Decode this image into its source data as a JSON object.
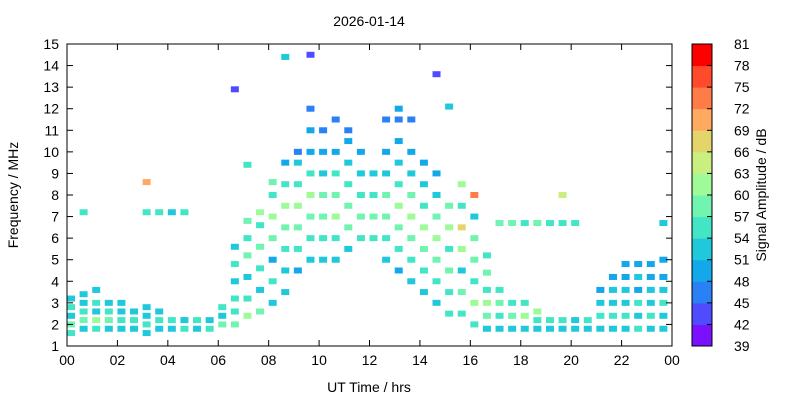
{
  "chart_data": {
    "type": "heatmap",
    "title": "2026-01-14",
    "xlabel": "UT Time / hrs",
    "ylabel": "Frequency / MHz",
    "xlim": [
      0,
      24
    ],
    "xticks": [
      {
        "value": 0,
        "label": "00"
      },
      {
        "value": 2,
        "label": "02"
      },
      {
        "value": 4,
        "label": "04"
      },
      {
        "value": 6,
        "label": "06"
      },
      {
        "value": 8,
        "label": "08"
      },
      10,
      12,
      14,
      16,
      18,
      20,
      22,
      {
        "value": 24,
        "label": "00"
      }
    ],
    "ylim": [
      1,
      15
    ],
    "yticks": [
      1,
      2,
      3,
      4,
      5,
      6,
      7,
      8,
      9,
      10,
      11,
      12,
      13,
      14,
      15
    ],
    "colorbar": {
      "label": "Signal Amplitude / dB",
      "ticks": [
        39,
        42,
        45,
        48,
        51,
        54,
        57,
        60,
        63,
        66,
        69,
        72,
        75,
        78,
        81
      ],
      "colors": [
        "#7b10ff",
        "#4f4cff",
        "#2a80f5",
        "#12a8ea",
        "#20c8dc",
        "#42e6c6",
        "#70f4b0",
        "#9efb98",
        "#c8ef80",
        "#e4d46c",
        "#ffaa60",
        "#ff7c48",
        "#ff4a2c",
        "#ff0000"
      ]
    },
    "columns": [
      {
        "x": 0,
        "y": [
          1.6,
          2.0,
          2.4,
          2.8,
          3.2
        ],
        "values": [
          54,
          57,
          51,
          55,
          52
        ]
      },
      {
        "x": 0.5,
        "y": [
          1.8,
          2.2,
          2.6,
          3.0,
          3.4,
          7.2
        ],
        "values": [
          52,
          58,
          55,
          53,
          51,
          54
        ]
      },
      {
        "x": 1,
        "y": [
          1.8,
          2.2,
          2.6,
          3.0,
          3.6
        ],
        "values": [
          55,
          60,
          52,
          54,
          51
        ]
      },
      {
        "x": 1.5,
        "y": [
          1.8,
          2.2,
          2.6,
          3.0
        ],
        "values": [
          51,
          57,
          54,
          52
        ]
      },
      {
        "x": 2,
        "y": [
          1.8,
          2.2,
          2.6,
          3.0
        ],
        "values": [
          53,
          55,
          51,
          52
        ]
      },
      {
        "x": 2.5,
        "y": [
          1.8,
          2.2,
          2.6
        ],
        "values": [
          52,
          54,
          53
        ]
      },
      {
        "x": 3,
        "y": [
          1.6,
          2.0,
          2.4,
          2.8,
          7.2,
          8.6
        ],
        "values": [
          51,
          55,
          53,
          52,
          54,
          69
        ]
      },
      {
        "x": 3.5,
        "y": [
          1.8,
          2.2,
          2.6,
          7.2
        ],
        "values": [
          53,
          56,
          51,
          54
        ]
      },
      {
        "x": 4,
        "y": [
          1.8,
          2.2,
          7.2
        ],
        "values": [
          52,
          55,
          53
        ]
      },
      {
        "x": 4.5,
        "y": [
          1.8,
          2.2,
          7.2
        ],
        "values": [
          55,
          53,
          54
        ]
      },
      {
        "x": 5,
        "y": [
          1.8,
          2.2
        ],
        "values": [
          52,
          56
        ]
      },
      {
        "x": 5.5,
        "y": [
          1.8,
          2.2
        ],
        "values": [
          54,
          51
        ]
      },
      {
        "x": 6,
        "y": [
          2.0,
          2.4,
          2.8
        ],
        "values": [
          57,
          53,
          55
        ]
      },
      {
        "x": 6.5,
        "y": [
          2.0,
          2.6,
          3.2,
          4.0,
          4.8,
          5.6,
          12.9
        ],
        "values": [
          58,
          56,
          54,
          52,
          55,
          53,
          42
        ]
      },
      {
        "x": 7,
        "y": [
          2.4,
          3.2,
          4.2,
          5.2,
          6.0,
          6.8,
          9.4
        ],
        "values": [
          60,
          55,
          52,
          57,
          54,
          59,
          56
        ]
      },
      {
        "x": 7.5,
        "y": [
          2.6,
          3.6,
          4.6,
          5.6,
          6.6,
          7.2
        ],
        "values": [
          57,
          51,
          54,
          59,
          55,
          62
        ]
      },
      {
        "x": 8,
        "y": [
          3.0,
          4.0,
          5.0,
          6.0,
          7.0,
          8.0,
          8.6
        ],
        "values": [
          52,
          55,
          50,
          57,
          61,
          54,
          58
        ]
      },
      {
        "x": 8.5,
        "y": [
          3.5,
          4.5,
          5.5,
          6.5,
          7.5,
          8.5,
          9.5,
          14.4
        ],
        "values": [
          51,
          53,
          56,
          58,
          62,
          55,
          49,
          51
        ]
      },
      {
        "x": 9,
        "y": [
          4.5,
          5.5,
          6.5,
          7.5,
          8.5,
          9.5,
          10.0
        ],
        "values": [
          50,
          54,
          57,
          60,
          55,
          52,
          45
        ]
      },
      {
        "x": 9.5,
        "y": [
          5.0,
          6.0,
          7.0,
          8.0,
          9.0,
          10.0,
          11.0,
          12.0,
          14.5
        ],
        "values": [
          52,
          55,
          58,
          61,
          56,
          50,
          48,
          47,
          42
        ]
      },
      {
        "x": 10,
        "y": [
          5.0,
          6.0,
          7.0,
          8.0,
          9.0,
          10.0,
          11.0
        ],
        "values": [
          51,
          54,
          59,
          57,
          53,
          49,
          47
        ]
      },
      {
        "x": 10.5,
        "y": [
          5.0,
          6.0,
          7.0,
          8.0,
          9.0,
          10.0,
          11.5
        ],
        "values": [
          53,
          56,
          60,
          58,
          54,
          50,
          46
        ]
      },
      {
        "x": 11,
        "y": [
          5.5,
          6.5,
          7.5,
          8.5,
          9.5,
          10.5,
          11.0
        ],
        "values": [
          52,
          57,
          59,
          55,
          51,
          48,
          47
        ]
      },
      {
        "x": 11.5,
        "y": [
          6.0,
          7.0,
          8.0,
          9.0,
          10.0
        ],
        "values": [
          55,
          58,
          56,
          52,
          49
        ]
      },
      {
        "x": 12,
        "y": [
          6.0,
          7.0,
          8.0,
          9.0
        ],
        "values": [
          54,
          57,
          55,
          51
        ]
      },
      {
        "x": 12.5,
        "y": [
          5.0,
          6.0,
          7.0,
          8.0,
          9.0,
          10.0,
          11.5
        ],
        "values": [
          51,
          55,
          59,
          57,
          53,
          49,
          47
        ]
      },
      {
        "x": 13,
        "y": [
          4.5,
          5.5,
          6.5,
          7.5,
          8.5,
          9.5,
          10.5,
          11.5,
          12.0
        ],
        "values": [
          50,
          54,
          58,
          61,
          56,
          52,
          49,
          47,
          48
        ]
      },
      {
        "x": 13.5,
        "y": [
          4.0,
          5.0,
          6.0,
          7.0,
          8.0,
          9.0,
          10.0,
          11.5
        ],
        "values": [
          52,
          55,
          59,
          62,
          57,
          53,
          50,
          47
        ]
      },
      {
        "x": 14,
        "y": [
          3.5,
          4.5,
          5.5,
          6.5,
          7.5,
          8.5,
          9.5
        ],
        "values": [
          51,
          54,
          57,
          60,
          56,
          52,
          49
        ]
      },
      {
        "x": 14.5,
        "y": [
          3.0,
          4.0,
          5.0,
          6.0,
          7.0,
          8.0,
          9.0,
          13.6
        ],
        "values": [
          52,
          55,
          58,
          61,
          57,
          53,
          50,
          42
        ]
      },
      {
        "x": 15,
        "y": [
          2.5,
          3.5,
          4.5,
          5.5,
          6.5,
          7.5,
          12.1
        ],
        "values": [
          54,
          56,
          59,
          55,
          62,
          57,
          51
        ]
      },
      {
        "x": 15.5,
        "y": [
          2.5,
          3.5,
          4.5,
          5.5,
          6.5,
          7.5,
          8.5
        ],
        "values": [
          55,
          58,
          53,
          60,
          66,
          56,
          60
        ]
      },
      {
        "x": 16,
        "y": [
          2.0,
          3.0,
          4.0,
          5.0,
          6.0,
          7.0,
          8.0
        ],
        "values": [
          56,
          60,
          54,
          57,
          59,
          53,
          74
        ]
      },
      {
        "x": 16.5,
        "y": [
          1.8,
          2.4,
          3.0,
          3.6,
          4.4,
          5.2
        ],
        "values": [
          52,
          57,
          61,
          55,
          58,
          54
        ]
      },
      {
        "x": 17,
        "y": [
          1.8,
          2.4,
          3.0,
          3.6,
          6.7
        ],
        "values": [
          51,
          56,
          59,
          54,
          58
        ]
      },
      {
        "x": 17.5,
        "y": [
          1.8,
          2.4,
          3.0,
          6.7
        ],
        "values": [
          53,
          57,
          55,
          57
        ]
      },
      {
        "x": 18,
        "y": [
          1.8,
          2.4,
          3.0,
          6.7
        ],
        "values": [
          52,
          62,
          54,
          56
        ]
      },
      {
        "x": 18.5,
        "y": [
          1.8,
          2.2,
          2.6,
          6.7
        ],
        "values": [
          51,
          54,
          60,
          57
        ]
      },
      {
        "x": 19,
        "y": [
          1.8,
          2.2,
          6.7
        ],
        "values": [
          53,
          55,
          56
        ]
      },
      {
        "x": 19.5,
        "y": [
          1.8,
          2.2,
          6.7,
          8.0
        ],
        "values": [
          52,
          54,
          55,
          64
        ]
      },
      {
        "x": 20,
        "y": [
          1.8,
          2.2,
          6.7
        ],
        "values": [
          51,
          53,
          54
        ]
      },
      {
        "x": 20.5,
        "y": [
          1.8,
          2.2
        ],
        "values": [
          52,
          55
        ]
      },
      {
        "x": 21,
        "y": [
          1.8,
          2.4,
          3.0,
          3.6
        ],
        "values": [
          51,
          54,
          52,
          50
        ]
      },
      {
        "x": 21.5,
        "y": [
          1.8,
          2.4,
          3.0,
          3.6,
          4.2
        ],
        "values": [
          53,
          55,
          51,
          52,
          50
        ]
      },
      {
        "x": 22,
        "y": [
          1.8,
          2.4,
          3.0,
          3.6,
          4.2,
          4.8
        ],
        "values": [
          52,
          56,
          53,
          51,
          50,
          49
        ]
      },
      {
        "x": 22.5,
        "y": [
          1.8,
          2.4,
          3.0,
          3.6,
          4.2,
          4.8
        ],
        "values": [
          54,
          52,
          55,
          50,
          51,
          49
        ]
      },
      {
        "x": 23,
        "y": [
          1.8,
          2.4,
          3.0,
          3.6,
          4.2,
          4.8
        ],
        "values": [
          51,
          55,
          52,
          53,
          50,
          48
        ]
      },
      {
        "x": 23.5,
        "y": [
          1.8,
          2.4,
          3.0,
          3.6,
          4.2,
          5.0,
          6.7
        ],
        "values": [
          53,
          51,
          54,
          52,
          49,
          48,
          53
        ]
      }
    ]
  }
}
